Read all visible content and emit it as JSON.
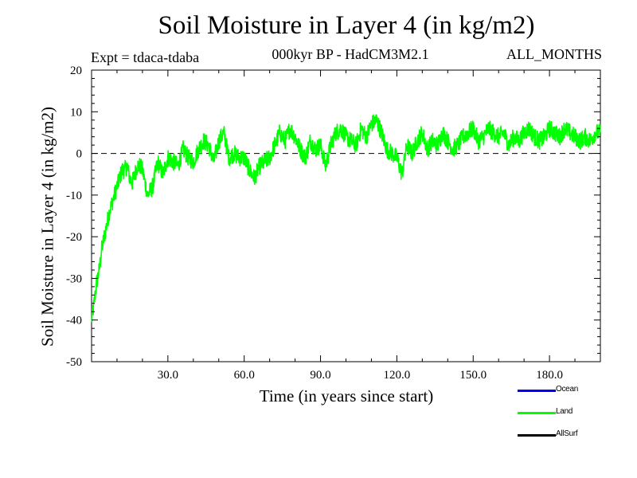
{
  "chart_data": {
    "type": "line",
    "title": "Soil Moisture in Layer 4 (in kg/m2)",
    "subtitle": "000kyr BP - HadCM3M2.1",
    "experiment": "Expt = tdaca-tdaba",
    "period": "ALL_MONTHS",
    "xlabel": "Time (in years since start)",
    "ylabel": "Soil Moisture in Layer 4 (in kg/m2)",
    "xlim": [
      0,
      200
    ],
    "ylim": [
      -50,
      20
    ],
    "x_ticks": [
      30,
      60,
      90,
      120,
      150,
      180
    ],
    "x_tick_labels": [
      "30.0",
      "60.0",
      "90.0",
      "120.0",
      "150.0",
      "180.0"
    ],
    "y_ticks": [
      20,
      10,
      0,
      -10,
      -20,
      -30,
      -40,
      -50
    ],
    "y_tick_labels": [
      "20",
      "10",
      "0",
      "-10",
      "-20",
      "-30",
      "-40",
      "-50"
    ],
    "reference_line": {
      "y": 0,
      "style": "dashed"
    },
    "series": [
      {
        "name": "Land",
        "color": "#00ff00",
        "x": [
          0,
          1,
          2,
          3,
          4,
          5,
          6,
          7,
          8,
          9,
          10,
          11,
          12,
          13,
          14,
          15,
          16,
          17,
          18,
          19,
          20,
          22,
          24,
          26,
          28,
          30,
          32,
          34,
          36,
          38,
          40,
          42,
          44,
          46,
          48,
          50,
          52,
          54,
          56,
          58,
          60,
          62,
          64,
          66,
          68,
          70,
          72,
          74,
          76,
          78,
          80,
          82,
          84,
          86,
          88,
          90,
          92,
          94,
          96,
          98,
          100,
          102,
          104,
          106,
          108,
          110,
          112,
          114,
          116,
          118,
          120,
          122,
          124,
          126,
          128,
          130,
          132,
          134,
          136,
          138,
          140,
          142,
          144,
          146,
          148,
          150,
          152,
          154,
          156,
          158,
          160,
          162,
          164,
          166,
          168,
          170,
          172,
          174,
          176,
          178,
          180,
          182,
          184,
          186,
          188,
          190,
          192,
          194,
          196,
          198,
          200
        ],
        "values": [
          -40,
          -36,
          -31,
          -28,
          -23,
          -20,
          -17,
          -14,
          -12,
          -10,
          -8,
          -6,
          -4,
          -4,
          -3,
          -6,
          -7,
          -5,
          -3,
          -3,
          -4,
          -10,
          -8,
          -2,
          -5,
          -1,
          -2,
          -3,
          1,
          -1,
          -2,
          1,
          3,
          2,
          -2,
          3,
          5,
          -1,
          0,
          -1,
          -1,
          -4,
          -6,
          -3,
          -2,
          -1,
          2,
          5,
          3,
          6,
          4,
          1,
          -1,
          3,
          1,
          2,
          -3,
          2,
          5,
          6,
          4,
          3,
          2,
          6,
          4,
          7,
          8,
          5,
          1,
          0,
          -1,
          -5,
          2,
          0,
          3,
          5,
          1,
          3,
          2,
          5,
          3,
          1,
          2,
          4,
          5,
          6,
          3,
          4,
          6,
          5,
          4,
          5,
          2,
          4,
          3,
          5,
          6,
          4,
          3,
          4,
          6,
          5,
          4,
          6,
          5,
          4,
          3,
          4,
          3,
          5,
          5
        ]
      }
    ],
    "legend": [
      {
        "label": "Ocean",
        "color": "#0000ff"
      },
      {
        "label": "Land",
        "color": "#00ff00"
      },
      {
        "label": "AllSurf",
        "color": "#000000"
      }
    ]
  }
}
